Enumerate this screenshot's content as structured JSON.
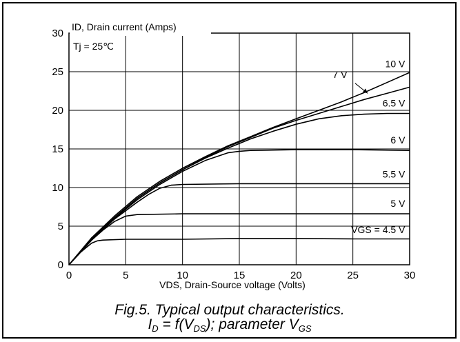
{
  "chart_data": {
    "type": "line",
    "title_line1": "Fig.5.  Typical output characteristics.",
    "title_line2_parts": {
      "i": "I",
      "d_sub": "D",
      "eq": " = f(V",
      "ds_sub": "DS",
      "param": "); parameter V",
      "gs_sub": "GS"
    },
    "ylabel": "ID, Drain current (Amps)",
    "xlabel": "VDS, Drain-Source voltage (Volts)",
    "annotation": "Tj = 25℃",
    "xlim": [
      0,
      30
    ],
    "ylim": [
      0,
      30
    ],
    "x_ticks": [
      "0",
      "5",
      "10",
      "15",
      "20",
      "25",
      "30"
    ],
    "y_ticks": [
      "0",
      "5",
      "10",
      "15",
      "20",
      "25",
      "30"
    ],
    "grid": true,
    "series": [
      {
        "name": "VGS = 4.5 V",
        "x": [
          0,
          1,
          2,
          2.5,
          3,
          5,
          10,
          15,
          20,
          25,
          30
        ],
        "y": [
          0,
          1.6,
          2.8,
          3.1,
          3.2,
          3.3,
          3.3,
          3.4,
          3.4,
          3.35,
          3.35
        ]
      },
      {
        "name": "5 V",
        "x": [
          0,
          1,
          2,
          3,
          4,
          5,
          6,
          10,
          15,
          20,
          25,
          30
        ],
        "y": [
          0,
          1.6,
          3.2,
          4.5,
          5.6,
          6.3,
          6.5,
          6.6,
          6.6,
          6.6,
          6.6,
          6.6
        ]
      },
      {
        "name": "5.5 V",
        "x": [
          0,
          1,
          2,
          3,
          4,
          5,
          6,
          7,
          8,
          9,
          10,
          15,
          20,
          25,
          30
        ],
        "y": [
          0,
          1.6,
          3.2,
          4.6,
          5.9,
          7.0,
          8.1,
          9.1,
          9.9,
          10.3,
          10.4,
          10.5,
          10.5,
          10.5,
          10.5
        ]
      },
      {
        "name": "6 V",
        "x": [
          0,
          2,
          4,
          6,
          8,
          10,
          12,
          14,
          15,
          16,
          20,
          25,
          30
        ],
        "y": [
          0,
          3.3,
          6.0,
          8.4,
          10.4,
          12.1,
          13.5,
          14.5,
          14.7,
          14.8,
          14.9,
          14.9,
          14.8
        ]
      },
      {
        "name": "6.5 V",
        "x": [
          0,
          2,
          4,
          6,
          8,
          10,
          12,
          14,
          16,
          18,
          20,
          22,
          24,
          26,
          28,
          30
        ],
        "y": [
          0,
          3.4,
          6.1,
          8.6,
          10.6,
          12.3,
          13.8,
          15.1,
          16.3,
          17.3,
          18.2,
          18.9,
          19.3,
          19.5,
          19.6,
          19.6
        ]
      },
      {
        "name": "7 V",
        "x": [
          0,
          2,
          4,
          6,
          8,
          10,
          12,
          14,
          16,
          18,
          20,
          22,
          24,
          26,
          28,
          30
        ],
        "y": [
          0,
          3.4,
          6.1,
          8.6,
          10.6,
          12.3,
          13.9,
          15.3,
          16.5,
          17.7,
          18.7,
          19.6,
          20.5,
          21.4,
          22.2,
          23.0
        ]
      },
      {
        "name": "10 V",
        "x": [
          0,
          2,
          4,
          6,
          8,
          10,
          12,
          14,
          16,
          18,
          20,
          22,
          24,
          26,
          28,
          30
        ],
        "y": [
          0,
          3.5,
          6.3,
          8.8,
          10.8,
          12.5,
          14.0,
          15.4,
          16.6,
          17.8,
          18.9,
          20.0,
          21.1,
          22.3,
          23.6,
          24.9
        ]
      }
    ],
    "series_labels": [
      {
        "text": "VGS = 4.5 V",
        "x": 29.6,
        "y": 4.1
      },
      {
        "text": "5 V",
        "x": 29.6,
        "y": 7.5
      },
      {
        "text": "5.5 V",
        "x": 29.6,
        "y": 11.3
      },
      {
        "text": "6 V",
        "x": 29.6,
        "y": 15.7
      },
      {
        "text": "6.5 V",
        "x": 29.6,
        "y": 20.5
      },
      {
        "text": "7 V",
        "x": 24.5,
        "y": 24.2
      },
      {
        "text": "10 V",
        "x": 29.6,
        "y": 25.6
      }
    ],
    "arrow": {
      "from": [
        25.2,
        23.5
      ],
      "to": [
        26.3,
        22.2
      ]
    },
    "color": "#000000"
  }
}
